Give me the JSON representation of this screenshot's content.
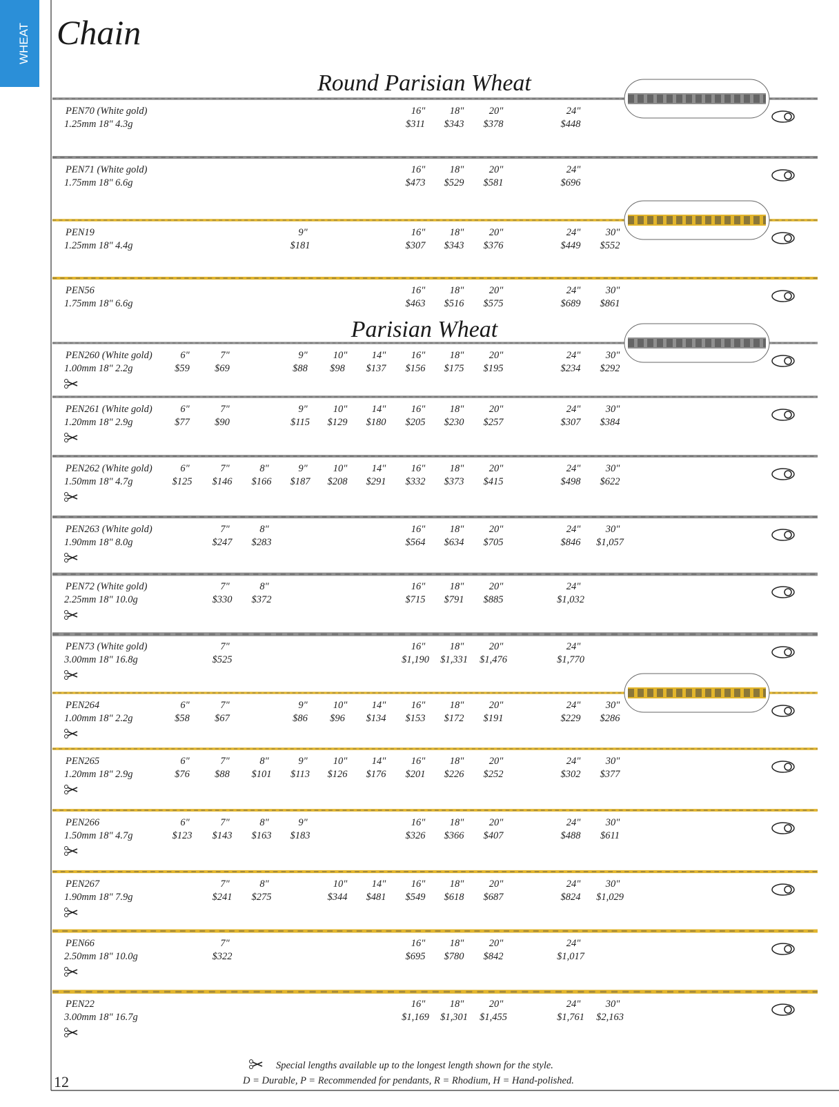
{
  "header": {
    "tab": "WHEAT",
    "title": "Chain"
  },
  "sections": [
    {
      "title": "Round Parisian Wheat",
      "items": [
        {
          "code": "PEN70 (White gold)",
          "spec": "1.25mm 18\" 4.3g",
          "color": "#8f8f8f",
          "prices": [
            {
              "length": "16\"",
              "price": "$311"
            },
            {
              "length": "18\"",
              "price": "$343"
            },
            {
              "length": "20\"",
              "price": "$378"
            },
            {
              "length": "24\"",
              "price": "$448"
            }
          ]
        },
        {
          "code": "PEN71 (White gold)",
          "spec": "1.75mm 18\" 6.6g",
          "color": "#8f8f8f",
          "prices": [
            {
              "length": "16\"",
              "price": "$473"
            },
            {
              "length": "18\"",
              "price": "$529"
            },
            {
              "length": "20\"",
              "price": "$581"
            },
            {
              "length": "24\"",
              "price": "$696"
            }
          ]
        },
        {
          "code": "PEN19",
          "spec": "1.25mm 18\" 4.4g",
          "color": "#e2b52c",
          "prices": [
            {
              "length": "9\"",
              "price": "$181"
            },
            {
              "length": "16\"",
              "price": "$307"
            },
            {
              "length": "18\"",
              "price": "$343"
            },
            {
              "length": "20\"",
              "price": "$376"
            },
            {
              "length": "24\"",
              "price": "$449"
            },
            {
              "length": "30\"",
              "price": "$552"
            }
          ]
        },
        {
          "code": "PEN56",
          "spec": "1.75mm 18\" 6.6g",
          "color": "#e2b52c",
          "prices": [
            {
              "length": "16\"",
              "price": "$463"
            },
            {
              "length": "18\"",
              "price": "$516"
            },
            {
              "length": "20\"",
              "price": "$575"
            },
            {
              "length": "24\"",
              "price": "$689"
            },
            {
              "length": "30\"",
              "price": "$861"
            }
          ]
        }
      ]
    },
    {
      "title": "Parisian Wheat",
      "items": [
        {
          "code": "PEN260 (White gold)",
          "spec": "1.00mm 18\" 2.2g",
          "color": "#8f8f8f",
          "prices": [
            {
              "length": "6\"",
              "price": "$59"
            },
            {
              "length": "7\"",
              "price": "$69"
            },
            {
              "length": "9\"",
              "price": "$88"
            },
            {
              "length": "10\"",
              "price": "$98"
            },
            {
              "length": "14\"",
              "price": "$137"
            },
            {
              "length": "16\"",
              "price": "$156"
            },
            {
              "length": "18\"",
              "price": "$175"
            },
            {
              "length": "20\"",
              "price": "$195"
            },
            {
              "length": "24\"",
              "price": "$234"
            },
            {
              "length": "30\"",
              "price": "$292"
            }
          ]
        },
        {
          "code": "PEN261 (White gold)",
          "spec": "1.20mm 18\" 2.9g",
          "color": "#8f8f8f",
          "prices": [
            {
              "length": "6\"",
              "price": "$77"
            },
            {
              "length": "7\"",
              "price": "$90"
            },
            {
              "length": "9\"",
              "price": "$115"
            },
            {
              "length": "10\"",
              "price": "$129"
            },
            {
              "length": "14\"",
              "price": "$180"
            },
            {
              "length": "16\"",
              "price": "$205"
            },
            {
              "length": "18\"",
              "price": "$230"
            },
            {
              "length": "20\"",
              "price": "$257"
            },
            {
              "length": "24\"",
              "price": "$307"
            },
            {
              "length": "30\"",
              "price": "$384"
            }
          ]
        },
        {
          "code": "PEN262 (White gold)",
          "spec": "1.50mm 18\" 4.7g",
          "color": "#8f8f8f",
          "prices": [
            {
              "length": "6\"",
              "price": "$125"
            },
            {
              "length": "7\"",
              "price": "$146"
            },
            {
              "length": "8\"",
              "price": "$166"
            },
            {
              "length": "9\"",
              "price": "$187"
            },
            {
              "length": "10\"",
              "price": "$208"
            },
            {
              "length": "14\"",
              "price": "$291"
            },
            {
              "length": "16\"",
              "price": "$332"
            },
            {
              "length": "18\"",
              "price": "$373"
            },
            {
              "length": "20\"",
              "price": "$415"
            },
            {
              "length": "24\"",
              "price": "$498"
            },
            {
              "length": "30\"",
              "price": "$622"
            }
          ]
        },
        {
          "code": "PEN263 (White gold)",
          "spec": "1.90mm 18\" 8.0g",
          "color": "#8f8f8f",
          "prices": [
            {
              "length": "7\"",
              "price": "$247"
            },
            {
              "length": "8\"",
              "price": "$283"
            },
            {
              "length": "16\"",
              "price": "$564"
            },
            {
              "length": "18\"",
              "price": "$634"
            },
            {
              "length": "20\"",
              "price": "$705"
            },
            {
              "length": "24\"",
              "price": "$846"
            },
            {
              "length": "30\"",
              "price": "$1,057"
            }
          ]
        },
        {
          "code": "PEN72 (White gold)",
          "spec": "2.25mm 18\" 10.0g",
          "color": "#8f8f8f",
          "prices": [
            {
              "length": "7\"",
              "price": "$330"
            },
            {
              "length": "8\"",
              "price": "$372"
            },
            {
              "length": "16\"",
              "price": "$715"
            },
            {
              "length": "18\"",
              "price": "$791"
            },
            {
              "length": "20\"",
              "price": "$885"
            },
            {
              "length": "24\"",
              "price": "$1,032"
            }
          ]
        },
        {
          "code": "PEN73 (White gold)",
          "spec": "3.00mm 18\" 16.8g",
          "color": "#8f8f8f",
          "prices": [
            {
              "length": "7\"",
              "price": "$525"
            },
            {
              "length": "16\"",
              "price": "$1,190"
            },
            {
              "length": "18\"",
              "price": "$1,331"
            },
            {
              "length": "20\"",
              "price": "$1,476"
            },
            {
              "length": "24\"",
              "price": "$1,770"
            }
          ]
        },
        {
          "code": "PEN264",
          "spec": "1.00mm 18\" 2.2g",
          "color": "#e2b52c",
          "prices": [
            {
              "length": "6\"",
              "price": "$58"
            },
            {
              "length": "7\"",
              "price": "$67"
            },
            {
              "length": "9\"",
              "price": "$86"
            },
            {
              "length": "10\"",
              "price": "$96"
            },
            {
              "length": "14\"",
              "price": "$134"
            },
            {
              "length": "16\"",
              "price": "$153"
            },
            {
              "length": "18\"",
              "price": "$172"
            },
            {
              "length": "20\"",
              "price": "$191"
            },
            {
              "length": "24\"",
              "price": "$229"
            },
            {
              "length": "30\"",
              "price": "$286"
            }
          ]
        },
        {
          "code": "PEN265",
          "spec": "1.20mm 18\" 2.9g",
          "color": "#e2b52c",
          "prices": [
            {
              "length": "6\"",
              "price": "$76"
            },
            {
              "length": "7\"",
              "price": "$88"
            },
            {
              "length": "8\"",
              "price": "$101"
            },
            {
              "length": "9\"",
              "price": "$113"
            },
            {
              "length": "10\"",
              "price": "$126"
            },
            {
              "length": "14\"",
              "price": "$176"
            },
            {
              "length": "16\"",
              "price": "$201"
            },
            {
              "length": "18\"",
              "price": "$226"
            },
            {
              "length": "20\"",
              "price": "$252"
            },
            {
              "length": "24\"",
              "price": "$302"
            },
            {
              "length": "30\"",
              "price": "$377"
            }
          ]
        },
        {
          "code": "PEN266",
          "spec": "1.50mm 18\" 4.7g",
          "color": "#e2b52c",
          "prices": [
            {
              "length": "6\"",
              "price": "$123"
            },
            {
              "length": "7\"",
              "price": "$143"
            },
            {
              "length": "8\"",
              "price": "$163"
            },
            {
              "length": "9\"",
              "price": "$183"
            },
            {
              "length": "16\"",
              "price": "$326"
            },
            {
              "length": "18\"",
              "price": "$366"
            },
            {
              "length": "20\"",
              "price": "$407"
            },
            {
              "length": "24\"",
              "price": "$488"
            },
            {
              "length": "30\"",
              "price": "$611"
            }
          ]
        },
        {
          "code": "PEN267",
          "spec": "1.90mm 18\" 7.9g",
          "color": "#e2b52c",
          "prices": [
            {
              "length": "7\"",
              "price": "$241"
            },
            {
              "length": "8\"",
              "price": "$275"
            },
            {
              "length": "10\"",
              "price": "$344"
            },
            {
              "length": "14\"",
              "price": "$481"
            },
            {
              "length": "16\"",
              "price": "$549"
            },
            {
              "length": "18\"",
              "price": "$618"
            },
            {
              "length": "20\"",
              "price": "$687"
            },
            {
              "length": "24\"",
              "price": "$824"
            },
            {
              "length": "30\"",
              "price": "$1,029"
            }
          ]
        },
        {
          "code": "PEN66",
          "spec": "2.50mm 18\" 10.0g",
          "color": "#e2b52c",
          "prices": [
            {
              "length": "7\"",
              "price": "$322"
            },
            {
              "length": "16\"",
              "price": "$695"
            },
            {
              "length": "18\"",
              "price": "$780"
            },
            {
              "length": "20\"",
              "price": "$842"
            },
            {
              "length": "24\"",
              "price": "$1,017"
            }
          ]
        },
        {
          "code": "PEN22",
          "spec": "3.00mm 18\" 16.7g",
          "color": "#e2b52c",
          "prices": [
            {
              "length": "16\"",
              "price": "$1,169"
            },
            {
              "length": "18\"",
              "price": "$1,301"
            },
            {
              "length": "20\"",
              "price": "$1,455"
            },
            {
              "length": "24\"",
              "price": "$1,761"
            },
            {
              "length": "30\"",
              "price": "$2,163"
            }
          ]
        }
      ]
    }
  ],
  "footer": {
    "page": "12",
    "notes": [
      "Special lengths available up to the longest length shown for the style.",
      "D = Durable, P = Recommended for pendants, R = Rhodium, H = Hand-polished."
    ]
  }
}
